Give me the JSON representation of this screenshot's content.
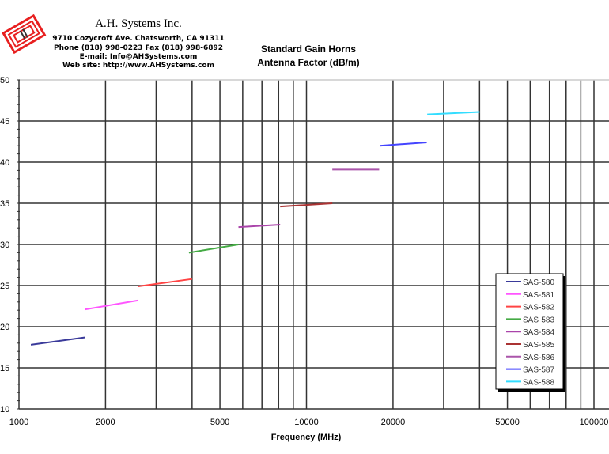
{
  "header": {
    "company": "A.H. Systems Inc.",
    "address": "9710 Cozycroft Ave. Chatsworth, CA 91311",
    "phone": "Phone (818) 998-0223 Fax (818) 998-6892",
    "email": "E-mail: Info@AHSystems.com",
    "website": "Web site: http://www.AHSystems.com"
  },
  "chart_data": {
    "type": "line",
    "title": "Standard Gain Horns",
    "subtitle": "Antenna Factor (dB/m)",
    "xlabel": "Frequency (MHz)",
    "ylabel": "",
    "xscale": "log",
    "xlim": [
      1000,
      100000
    ],
    "ylim": [
      10,
      50
    ],
    "xticks": [
      1000,
      2000,
      5000,
      10000,
      20000,
      50000,
      100000
    ],
    "xtick_labels": [
      "1000",
      "2000",
      "5000",
      "10000",
      "20000",
      "50000",
      "100000"
    ],
    "yticks": [
      10,
      15,
      20,
      25,
      30,
      35,
      40,
      45,
      50
    ],
    "ytick_labels": [
      "10",
      "15",
      "20",
      "25",
      "30",
      "35",
      "40",
      "45",
      "50"
    ],
    "grid": true,
    "legend_position": "bottom-right",
    "series": [
      {
        "name": "SAS-580",
        "color": "#3a3a9a",
        "x": [
          1100,
          1700
        ],
        "y": [
          17.8,
          18.7
        ]
      },
      {
        "name": "SAS-581",
        "color": "#ff55ff",
        "x": [
          1700,
          2600
        ],
        "y": [
          22.1,
          23.2
        ]
      },
      {
        "name": "SAS-582",
        "color": "#ff4444",
        "x": [
          2600,
          4000
        ],
        "y": [
          24.9,
          25.8
        ]
      },
      {
        "name": "SAS-583",
        "color": "#44aa44",
        "x": [
          3900,
          5800
        ],
        "y": [
          29.0,
          30.0
        ]
      },
      {
        "name": "SAS-584",
        "color": "#aa44aa",
        "x": [
          5800,
          8100
        ],
        "y": [
          32.1,
          32.4
        ]
      },
      {
        "name": "SAS-585",
        "color": "#aa3333",
        "x": [
          8100,
          12300
        ],
        "y": [
          34.6,
          35.0
        ]
      },
      {
        "name": "SAS-586",
        "color": "#aa55aa",
        "x": [
          12300,
          17900
        ],
        "y": [
          39.1,
          39.1
        ]
      },
      {
        "name": "SAS-587",
        "color": "#4444ff",
        "x": [
          18000,
          26200
        ],
        "y": [
          42.0,
          42.4
        ]
      },
      {
        "name": "SAS-588",
        "color": "#33ddff",
        "x": [
          26300,
          40000
        ],
        "y": [
          45.8,
          46.1
        ]
      }
    ]
  }
}
